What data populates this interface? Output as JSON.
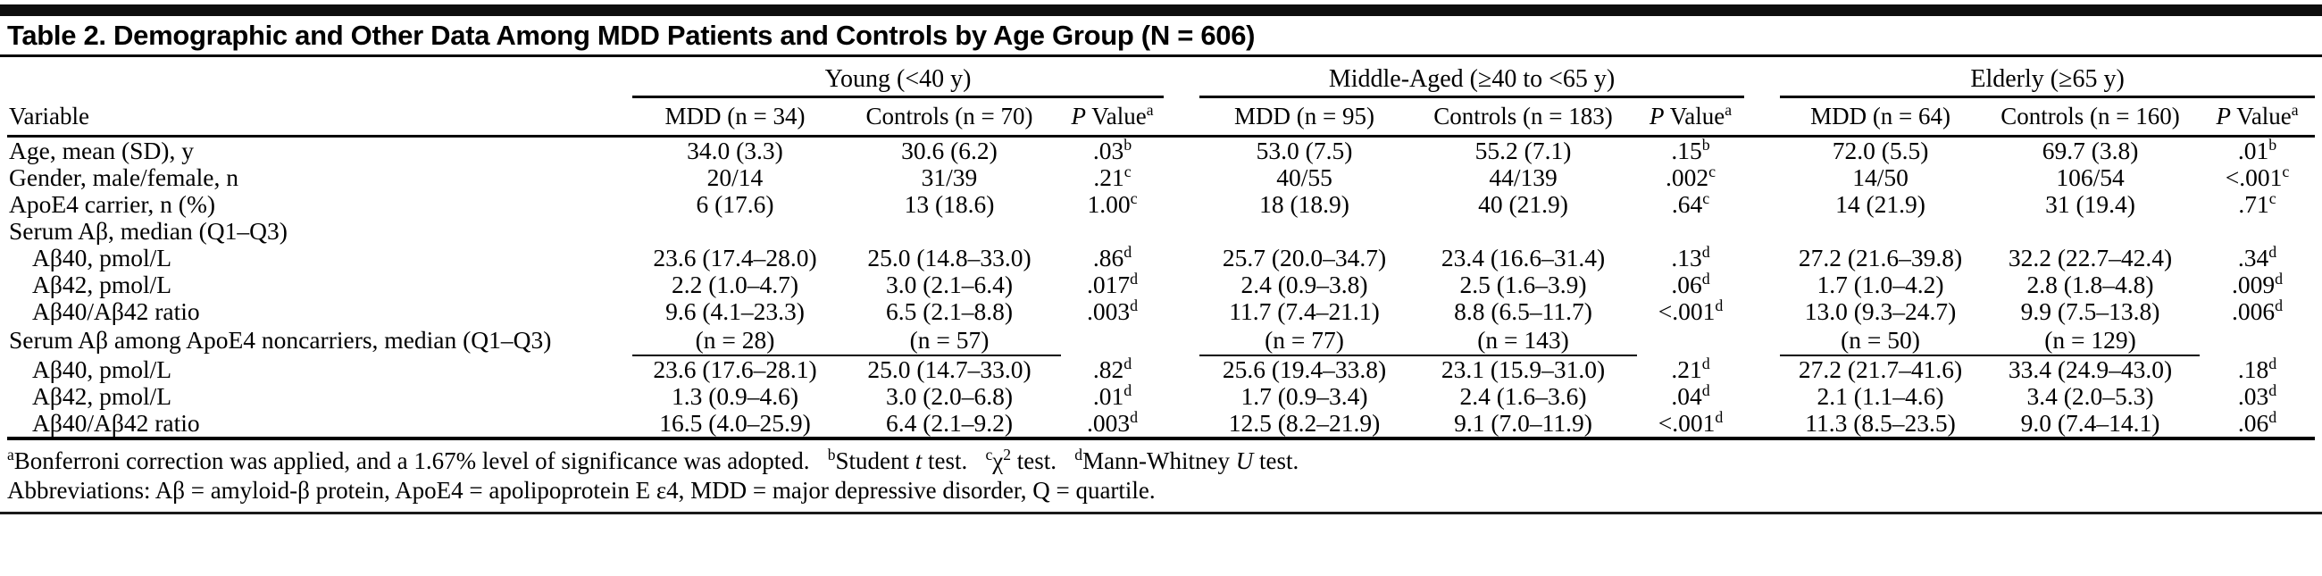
{
  "title": "Table 2. Demographic and Other Data Among MDD Patients and Controls by Age Group (N = 606)",
  "table": {
    "variable_header": "Variable",
    "groups": [
      {
        "label": "Young (<40 y)",
        "columns": [
          "MDD (n = 34)",
          "Controls (n = 70)",
          "*P* Value^a"
        ]
      },
      {
        "label": "Middle-Aged (≥40 to <65 y)",
        "columns": [
          "MDD (n = 95)",
          "Controls (n = 183)",
          "*P* Value^a"
        ]
      },
      {
        "label": "Elderly (≥65 y)",
        "columns": [
          "MDD (n = 64)",
          "Controls (n = 160)",
          "*P* Value^a"
        ]
      }
    ],
    "rows": [
      {
        "label": "Age, mean (SD), y",
        "indent": 0,
        "cells": [
          "34.0 (3.3)",
          "30.6 (6.2)",
          ".03^b",
          "53.0 (7.5)",
          "55.2 (7.1)",
          ".15^b",
          "72.0 (5.5)",
          "69.7 (3.8)",
          ".01^b"
        ]
      },
      {
        "label": "Gender, male/female, n",
        "indent": 0,
        "cells": [
          "20/14",
          "31/39",
          ".21^c",
          "40/55",
          "44/139",
          ".002^c",
          "14/50",
          "106/54",
          "<.001^c"
        ]
      },
      {
        "label": "ApoE4 carrier, n (%)",
        "indent": 0,
        "cells": [
          "6 (17.6)",
          "13 (18.6)",
          "1.00^c",
          "18 (18.9)",
          "40 (21.9)",
          ".64^c",
          "14 (21.9)",
          "31 (19.4)",
          ".71^c"
        ]
      },
      {
        "label": "Serum Aβ, median (Q1–Q3)",
        "indent": 0,
        "cells": [
          "",
          "",
          "",
          "",
          "",
          "",
          "",
          "",
          ""
        ]
      },
      {
        "label": "Aβ40, pmol/L",
        "indent": 1,
        "cells": [
          "23.6 (17.4–28.0)",
          "25.0 (14.8–33.0)",
          ".86^d",
          "25.7 (20.0–34.7)",
          "23.4 (16.6–31.4)",
          ".13^d",
          "27.2 (21.6–39.8)",
          "32.2 (22.7–42.4)",
          ".34^d"
        ]
      },
      {
        "label": "Aβ42, pmol/L",
        "indent": 1,
        "cells": [
          "2.2 (1.0–4.7)",
          "3.0 (2.1–6.4)",
          ".017^d",
          "2.4 (0.9–3.8)",
          "2.5 (1.6–3.9)",
          ".06^d",
          "1.7 (1.0–4.2)",
          "2.8 (1.8–4.8)",
          ".009^d"
        ]
      },
      {
        "label": "Aβ40/Aβ42 ratio",
        "indent": 1,
        "cells": [
          "9.6 (4.1–23.3)",
          "6.5 (2.1–8.8)",
          ".003^d",
          "11.7 (7.4–21.1)",
          "8.8 (6.5–11.7)",
          "<.001^d",
          "13.0 (9.3–24.7)",
          "9.9 (7.5–13.8)",
          ".006^d"
        ]
      },
      {
        "label": "Serum Aβ among ApoE4 noncarriers, median (Q1–Q3)",
        "indent": 0,
        "underline_cells": true,
        "cells": [
          "(n = 28)",
          "(n = 57)",
          "",
          "(n = 77)",
          "(n = 143)",
          "",
          "(n = 50)",
          "(n = 129)",
          ""
        ]
      },
      {
        "label": "Aβ40, pmol/L",
        "indent": 1,
        "cells": [
          "23.6 (17.6–28.1)",
          "25.0 (14.7–33.0)",
          ".82^d",
          "25.6 (19.4–33.8)",
          "23.1 (15.9–31.0)",
          ".21^d",
          "27.2 (21.7–41.6)",
          "33.4 (24.9–43.0)",
          ".18^d"
        ]
      },
      {
        "label": "Aβ42, pmol/L",
        "indent": 1,
        "cells": [
          "1.3 (0.9–4.6)",
          "3.0 (2.0–6.8)",
          ".01^d",
          "1.7 (0.9–3.4)",
          "2.4 (1.6–3.6)",
          ".04^d",
          "2.1 (1.1–4.6)",
          "3.4 (2.0–5.3)",
          ".03^d"
        ]
      },
      {
        "label": "Aβ40/Aβ42 ratio",
        "indent": 1,
        "cells": [
          "16.5 (4.0–25.9)",
          "6.4 (2.1–9.2)",
          ".003^d",
          "12.5 (8.2–21.9)",
          "9.1 (7.0–11.9)",
          "<.001^d",
          "11.3 (8.5–23.5)",
          "9.0 (7.4–14.1)",
          ".06^d"
        ]
      }
    ]
  },
  "footnotes": {
    "statistics": "^aBonferroni correction was applied, and a 1.67% level of significance was adopted.  ^bStudent *t* test.  ^cχ^2 test.  ^dMann-Whitney *U* test.",
    "abbreviations": "Abbreviations: Aβ = amyloid-β protein, ApoE4 = apolipoprotein E ε4, MDD = major depressive disorder, Q = quartile."
  }
}
